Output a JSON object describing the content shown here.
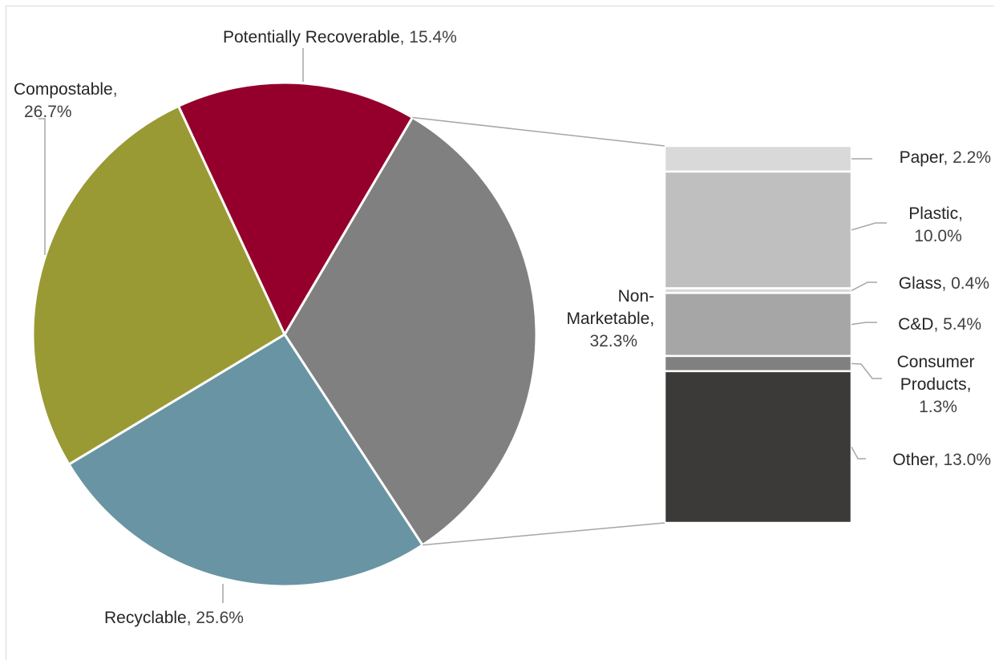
{
  "chart_data": {
    "type": "pie",
    "pie": {
      "slices": [
        {
          "name": "Non-Marketable",
          "value": 32.3,
          "value_label": "32.3%",
          "color": "#808080"
        },
        {
          "name": "Recyclable",
          "value": 25.6,
          "value_label": "25.6%",
          "color": "#6994a3"
        },
        {
          "name": "Compostable",
          "value": 26.7,
          "value_label": "26.7%",
          "color": "#9a9a35"
        },
        {
          "name": "Potentially Recoverable",
          "value": 15.4,
          "value_label": "15.4%",
          "color": "#94002b"
        }
      ]
    },
    "breakdown": {
      "parent": "Non-Marketable",
      "type": "stacked-bar",
      "segments": [
        {
          "name": "Paper",
          "value": 2.2,
          "value_label": "2.2%",
          "color": "#d9d9d9"
        },
        {
          "name": "Plastic",
          "value": 10.0,
          "value_label": "10.0%",
          "color": "#bfbfbf"
        },
        {
          "name": "Glass",
          "value": 0.4,
          "value_label": "0.4%",
          "color": "#d9d9d9"
        },
        {
          "name": "C&D",
          "value": 5.4,
          "value_label": "5.4%",
          "color": "#a6a6a6"
        },
        {
          "name": "Consumer Products",
          "value": 1.3,
          "value_label": "1.3%",
          "color": "#808080"
        },
        {
          "name": "Other",
          "value": 13.0,
          "value_label": "13.0%",
          "color": "#3b3a38"
        }
      ]
    }
  }
}
